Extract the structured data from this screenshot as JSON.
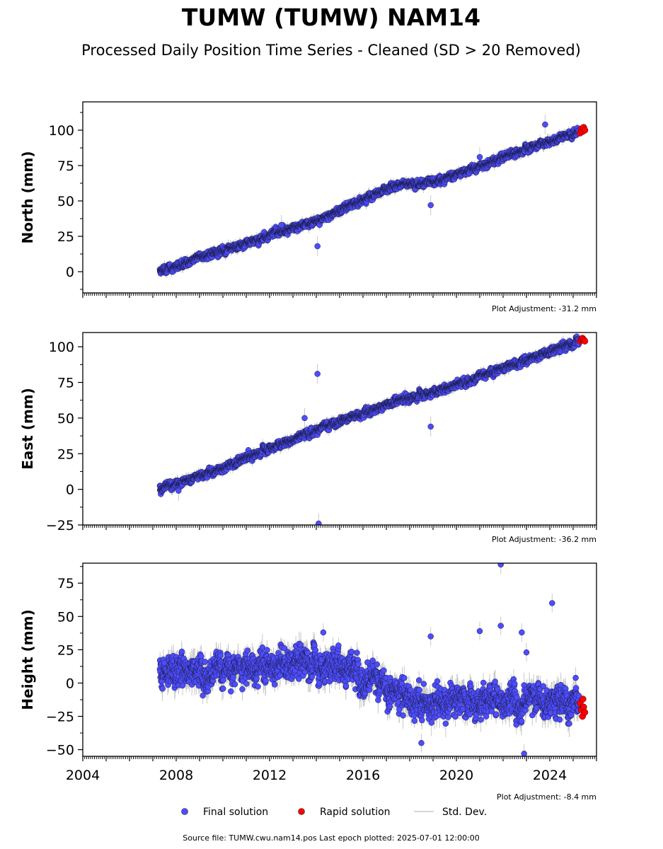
{
  "title": "TUMW (TUMW) NAM14",
  "subtitle": "Processed Daily Position Time Series - Cleaned (SD > 20 Removed)",
  "footer": "Source file: TUMW.cwu.nam14.pos  Last epoch plotted: 2025-07-01 12:00:00",
  "legend": {
    "final": "Final solution",
    "rapid": "Rapid solution",
    "sd": "Std. Dev."
  },
  "colors": {
    "final": "#4d4dff",
    "rapid": "#ff0000",
    "sd": "#c0c0c0"
  },
  "chart_data": [
    {
      "type": "scatter",
      "ylabel": "North (mm)",
      "xlim": [
        2004,
        2026
      ],
      "ylim": [
        -15,
        120
      ],
      "yticks": [
        0,
        25,
        50,
        75,
        100
      ],
      "xticks": [
        2004,
        2008,
        2012,
        2016,
        2020,
        2024
      ],
      "show_xtick_labels": false,
      "adjustment": "Plot Adjustment: -31.2 mm",
      "trend": [
        [
          2007.3,
          0
        ],
        [
          2010,
          15
        ],
        [
          2014,
          36
        ],
        [
          2017.5,
          62
        ],
        [
          2019,
          63
        ],
        [
          2025.3,
          100
        ]
      ],
      "noise": 2.5,
      "outliers": [
        [
          2014.05,
          18
        ],
        [
          2018.9,
          47
        ],
        [
          2023.8,
          104
        ],
        [
          2012.5,
          33
        ],
        [
          2021.0,
          81
        ]
      ],
      "rapid": [
        [
          2025.3,
          98
        ],
        [
          2025.35,
          101
        ],
        [
          2025.4,
          99
        ],
        [
          2025.45,
          102
        ],
        [
          2025.5,
          100
        ]
      ]
    },
    {
      "type": "scatter",
      "ylabel": "East (mm)",
      "xlim": [
        2004,
        2026
      ],
      "ylim": [
        -25,
        110
      ],
      "yticks": [
        -25,
        0,
        25,
        50,
        75,
        100
      ],
      "xticks": [
        2004,
        2008,
        2012,
        2016,
        2020,
        2024
      ],
      "show_xtick_labels": false,
      "adjustment": "Plot Adjustment: -36.2 mm",
      "trend": [
        [
          2007.3,
          0
        ],
        [
          2010,
          15
        ],
        [
          2014,
          42
        ],
        [
          2017.5,
          62
        ],
        [
          2019,
          68
        ],
        [
          2025.3,
          104
        ]
      ],
      "noise": 2.5,
      "outliers": [
        [
          2014.05,
          81
        ],
        [
          2014.1,
          -24
        ],
        [
          2018.9,
          44
        ],
        [
          2013.5,
          50
        ],
        [
          2008.1,
          -1
        ]
      ],
      "rapid": [
        [
          2025.3,
          104
        ],
        [
          2025.35,
          105
        ],
        [
          2025.4,
          106
        ],
        [
          2025.45,
          105
        ],
        [
          2025.5,
          104
        ]
      ]
    },
    {
      "type": "scatter",
      "ylabel": "Height (mm)",
      "xlim": [
        2004,
        2026
      ],
      "ylim": [
        -55,
        90
      ],
      "yticks": [
        -50,
        -25,
        0,
        25,
        50,
        75
      ],
      "xticks": [
        2004,
        2008,
        2012,
        2016,
        2020,
        2024
      ],
      "show_xtick_labels": true,
      "adjustment": "Plot Adjustment: -8.4 mm",
      "trend": [
        [
          2007.3,
          10
        ],
        [
          2010,
          10
        ],
        [
          2013,
          15
        ],
        [
          2015.5,
          12
        ],
        [
          2016.5,
          2
        ],
        [
          2018.5,
          -15
        ],
        [
          2021,
          -12
        ],
        [
          2025.3,
          -13
        ]
      ],
      "noise": 11,
      "outliers": [
        [
          2021.9,
          89
        ],
        [
          2024.1,
          60
        ],
        [
          2021.9,
          43
        ],
        [
          2021.0,
          39
        ],
        [
          2022.8,
          38
        ],
        [
          2023.0,
          23
        ],
        [
          2018.9,
          35
        ],
        [
          2022.9,
          -53
        ],
        [
          2018.5,
          -45
        ],
        [
          2014.3,
          38
        ]
      ],
      "rapid": [
        [
          2025.3,
          -15
        ],
        [
          2025.35,
          -20
        ],
        [
          2025.4,
          -25
        ],
        [
          2025.45,
          -18
        ],
        [
          2025.5,
          -22
        ],
        [
          2025.42,
          -12
        ]
      ]
    }
  ]
}
